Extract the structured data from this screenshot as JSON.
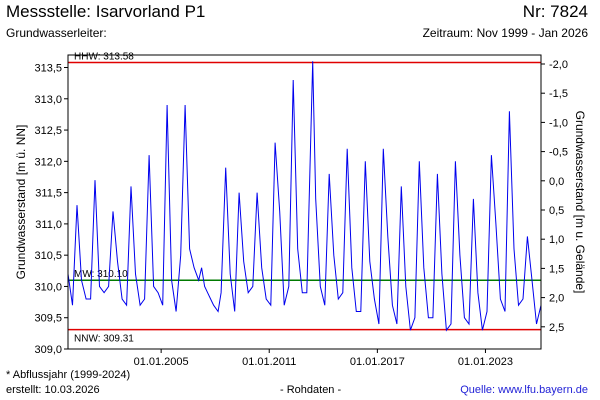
{
  "header": {
    "title": "Messstelle: Isarvorland P1",
    "number": "Nr: 7824",
    "aquifer_label": "Grundwasserleiter:",
    "period": "Zeitraum: Nov 1999 - Jan 2026"
  },
  "footer": {
    "note": "* Abflussjahr (1999-2024)",
    "created": "erstellt:  10.03.2026",
    "raw_data": "- Rohdaten -",
    "source": "Quelle: www.lfu.bayern.de"
  },
  "colors": {
    "series": "#0000ee",
    "hhw": "#e00000",
    "nnw": "#e00000",
    "mw": "#007a00",
    "axis": "#000000"
  },
  "chart_data": {
    "type": "line",
    "ylabel": "Grundwasserstand [m ü. NN]",
    "y2label": "Grundwasserstand [m u. Gelände]",
    "ylim": [
      309.0,
      313.7
    ],
    "xlim": [
      "1999-11-01",
      "2026-01-31"
    ],
    "yticks": [
      "309,0",
      "309,5",
      "310,0",
      "310,5",
      "311,0",
      "311,5",
      "312,0",
      "312,5",
      "313,0",
      "313,5"
    ],
    "y2ticks": [
      "-2,0",
      "-1,5",
      "-1,0",
      "-0,5",
      "0,0",
      "0,5",
      "1,0",
      "1,5",
      "2,0",
      "2,5"
    ],
    "xticks": [
      "01.01.2005",
      "01.01.2011",
      "01.01.2017",
      "01.01.2023"
    ],
    "reference_lines": [
      {
        "name": "HHW",
        "label": "HHW: 313.58",
        "value": 313.58
      },
      {
        "name": "MW",
        "label": "MW: 310.10",
        "value": 310.1
      },
      {
        "name": "NNW",
        "label": "NNW: 309.31",
        "value": 309.31
      }
    ],
    "series": [
      {
        "x": [
          "1999-11-01",
          "2000-02-01",
          "2000-05-01",
          "2000-08-01",
          "2000-11-01",
          "2001-02-01",
          "2001-05-01",
          "2001-08-01",
          "2001-11-01",
          "2002-02-01",
          "2002-05-01",
          "2002-08-01",
          "2002-11-01",
          "2003-02-01",
          "2003-05-01",
          "2003-08-01",
          "2003-11-01",
          "2004-02-01",
          "2004-05-01",
          "2004-08-01",
          "2004-11-01",
          "2005-02-01",
          "2005-05-01",
          "2005-08-01",
          "2005-11-01",
          "2006-02-01",
          "2006-05-01",
          "2006-08-01",
          "2006-11-01",
          "2007-02-01",
          "2007-04-01",
          "2007-06-01",
          "2007-08-01",
          "2007-10-01",
          "2007-12-01",
          "2008-03-01",
          "2008-05-01",
          "2008-08-01",
          "2008-11-01",
          "2009-02-01",
          "2009-05-01",
          "2009-08-01",
          "2009-11-01",
          "2010-02-01",
          "2010-05-01",
          "2010-08-01",
          "2010-11-01",
          "2011-02-01",
          "2011-05-01",
          "2011-08-01",
          "2011-11-01",
          "2012-02-01",
          "2012-05-01",
          "2012-08-01",
          "2012-11-01",
          "2013-02-01",
          "2013-06-01",
          "2013-08-01",
          "2013-11-01",
          "2014-02-01",
          "2014-05-01",
          "2014-08-01",
          "2014-11-01",
          "2015-02-01",
          "2015-05-01",
          "2015-08-01",
          "2015-11-01",
          "2016-02-01",
          "2016-05-01",
          "2016-08-01",
          "2016-11-01",
          "2017-02-01",
          "2017-05-01",
          "2017-08-01",
          "2017-11-01",
          "2018-02-01",
          "2018-05-01",
          "2018-08-01",
          "2018-11-01",
          "2019-02-01",
          "2019-05-01",
          "2019-08-01",
          "2019-11-01",
          "2020-02-01",
          "2020-05-01",
          "2020-08-01",
          "2020-11-01",
          "2021-02-01",
          "2021-05-01",
          "2021-08-01",
          "2021-11-01",
          "2022-02-01",
          "2022-05-01",
          "2022-08-01",
          "2022-11-01",
          "2023-02-01",
          "2023-05-01",
          "2023-08-01",
          "2023-11-01",
          "2024-02-01",
          "2024-05-01",
          "2024-08-01",
          "2024-11-01",
          "2025-02-01",
          "2025-05-01",
          "2025-08-01",
          "2025-11-01",
          "2026-01-31"
        ],
        "values": [
          310.2,
          309.7,
          311.3,
          310.1,
          309.8,
          309.8,
          311.7,
          310.0,
          309.9,
          310.0,
          311.2,
          310.4,
          309.8,
          309.7,
          311.6,
          310.2,
          309.7,
          309.8,
          312.1,
          310.0,
          309.9,
          309.7,
          312.9,
          310.1,
          309.6,
          310.5,
          312.9,
          310.6,
          310.3,
          310.1,
          310.3,
          310.0,
          309.9,
          309.8,
          309.7,
          309.6,
          309.9,
          311.9,
          310.2,
          309.6,
          311.5,
          310.4,
          309.9,
          310.0,
          311.5,
          310.3,
          309.8,
          309.7,
          312.3,
          311.2,
          309.7,
          310.0,
          313.3,
          310.6,
          309.9,
          309.9,
          313.6,
          311.4,
          310.0,
          309.7,
          311.8,
          310.5,
          309.8,
          309.9,
          312.2,
          310.3,
          309.6,
          309.6,
          312.0,
          310.4,
          309.8,
          309.4,
          312.2,
          310.8,
          309.7,
          309.4,
          311.6,
          310.0,
          309.3,
          309.5,
          312.0,
          310.3,
          309.5,
          309.5,
          311.8,
          310.2,
          309.3,
          309.4,
          312.0,
          310.5,
          309.5,
          309.4,
          311.4,
          309.9,
          309.3,
          309.6,
          312.1,
          311.0,
          309.8,
          309.6,
          312.8,
          310.6,
          309.7,
          309.8,
          310.8,
          310.1,
          309.4,
          309.7
        ]
      }
    ]
  }
}
